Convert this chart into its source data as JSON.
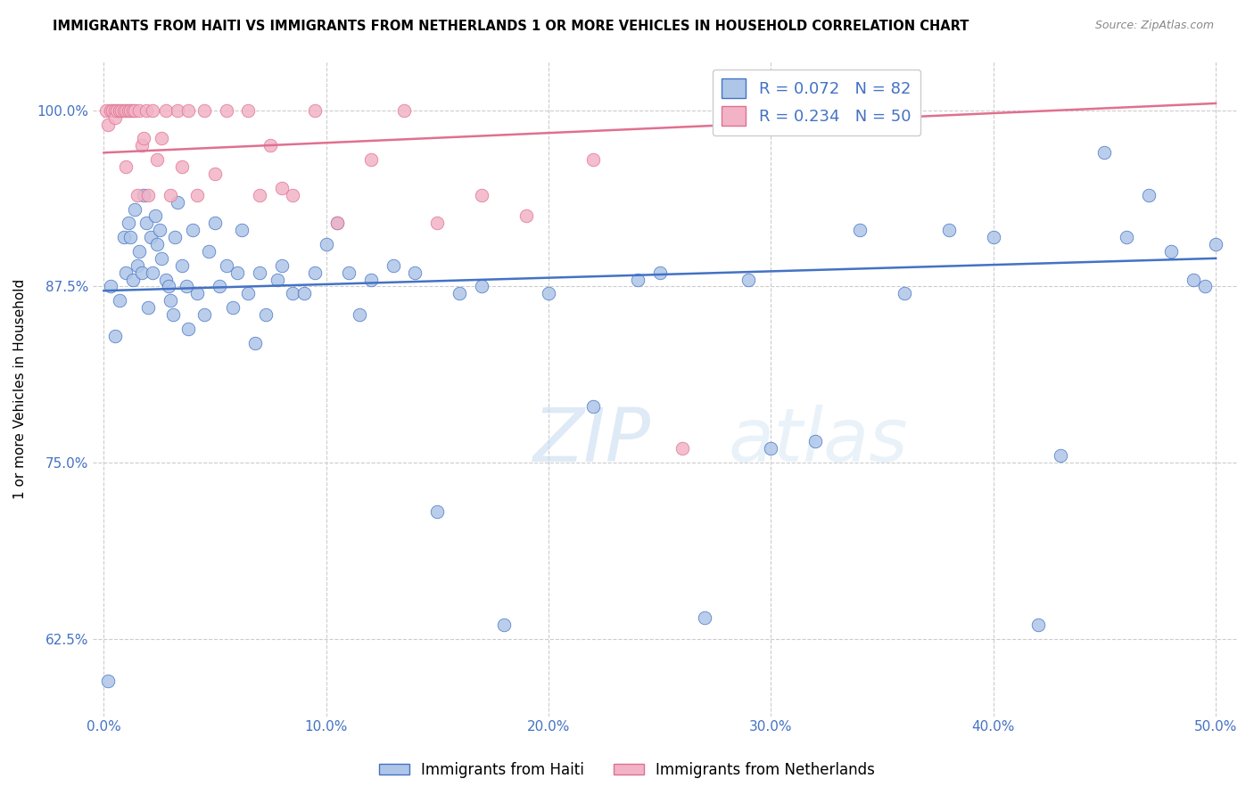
{
  "title": "IMMIGRANTS FROM HAITI VS IMMIGRANTS FROM NETHERLANDS 1 OR MORE VEHICLES IN HOUSEHOLD CORRELATION CHART",
  "source": "Source: ZipAtlas.com",
  "ylabel": "1 or more Vehicles in Household",
  "yticks": [
    62.5,
    75.0,
    87.5,
    100.0
  ],
  "xticks": [
    0.0,
    10.0,
    20.0,
    30.0,
    40.0,
    50.0
  ],
  "xlim": [
    -0.5,
    51.0
  ],
  "ylim": [
    57.0,
    103.5
  ],
  "haiti_R": 0.072,
  "haiti_N": 82,
  "netherlands_R": 0.234,
  "netherlands_N": 50,
  "haiti_color": "#aec6e8",
  "netherlands_color": "#f2b3c6",
  "haiti_line_color": "#4472C4",
  "netherlands_line_color": "#e07090",
  "legend_label_haiti": "Immigrants from Haiti",
  "legend_label_netherlands": "Immigrants from Netherlands",
  "haiti_x": [
    0.2,
    0.3,
    0.5,
    0.7,
    0.9,
    1.0,
    1.1,
    1.2,
    1.3,
    1.4,
    1.5,
    1.6,
    1.7,
    1.8,
    1.9,
    2.0,
    2.1,
    2.2,
    2.3,
    2.4,
    2.5,
    2.6,
    2.8,
    2.9,
    3.0,
    3.1,
    3.2,
    3.3,
    3.5,
    3.7,
    3.8,
    4.0,
    4.2,
    4.5,
    4.7,
    5.0,
    5.2,
    5.5,
    5.8,
    6.0,
    6.2,
    6.5,
    6.8,
    7.0,
    7.3,
    7.8,
    8.0,
    8.5,
    9.0,
    9.5,
    10.0,
    10.5,
    11.0,
    11.5,
    12.0,
    13.0,
    14.0,
    15.0,
    16.0,
    17.0,
    18.0,
    20.0,
    22.0,
    24.0,
    25.0,
    27.0,
    29.0,
    30.0,
    32.0,
    34.0,
    36.0,
    38.0,
    40.0,
    42.0,
    43.0,
    45.0,
    46.0,
    47.0,
    48.0,
    49.0,
    49.5,
    50.0
  ],
  "haiti_y": [
    59.5,
    87.5,
    84.0,
    86.5,
    91.0,
    88.5,
    92.0,
    91.0,
    88.0,
    93.0,
    89.0,
    90.0,
    88.5,
    94.0,
    92.0,
    86.0,
    91.0,
    88.5,
    92.5,
    90.5,
    91.5,
    89.5,
    88.0,
    87.5,
    86.5,
    85.5,
    91.0,
    93.5,
    89.0,
    87.5,
    84.5,
    91.5,
    87.0,
    85.5,
    90.0,
    92.0,
    87.5,
    89.0,
    86.0,
    88.5,
    91.5,
    87.0,
    83.5,
    88.5,
    85.5,
    88.0,
    89.0,
    87.0,
    87.0,
    88.5,
    90.5,
    92.0,
    88.5,
    85.5,
    88.0,
    89.0,
    88.5,
    71.5,
    87.0,
    87.5,
    63.5,
    87.0,
    79.0,
    88.0,
    88.5,
    64.0,
    88.0,
    76.0,
    76.5,
    91.5,
    87.0,
    91.5,
    91.0,
    63.5,
    75.5,
    97.0,
    91.0,
    94.0,
    90.0,
    88.0,
    87.5,
    90.5
  ],
  "netherlands_x": [
    0.1,
    0.2,
    0.3,
    0.4,
    0.5,
    0.5,
    0.6,
    0.7,
    0.8,
    0.9,
    1.0,
    1.0,
    1.1,
    1.2,
    1.3,
    1.4,
    1.5,
    1.6,
    1.7,
    1.8,
    1.9,
    2.0,
    2.2,
    2.4,
    2.6,
    2.8,
    3.0,
    3.3,
    3.5,
    3.8,
    4.2,
    4.5,
    5.0,
    5.5,
    6.5,
    7.0,
    7.5,
    8.0,
    8.5,
    9.5,
    10.5,
    12.0,
    13.5,
    15.0,
    17.0,
    19.0,
    22.0,
    26.0,
    30.0,
    35.0
  ],
  "netherlands_y": [
    100.0,
    99.0,
    100.0,
    100.0,
    100.0,
    99.5,
    100.0,
    100.0,
    100.0,
    100.0,
    96.0,
    100.0,
    100.0,
    100.0,
    100.0,
    100.0,
    94.0,
    100.0,
    97.5,
    98.0,
    100.0,
    94.0,
    100.0,
    96.5,
    98.0,
    100.0,
    94.0,
    100.0,
    96.0,
    100.0,
    94.0,
    100.0,
    95.5,
    100.0,
    100.0,
    94.0,
    97.5,
    94.5,
    94.0,
    100.0,
    92.0,
    96.5,
    100.0,
    92.0,
    94.0,
    92.5,
    96.5,
    76.0,
    100.0,
    100.0
  ]
}
